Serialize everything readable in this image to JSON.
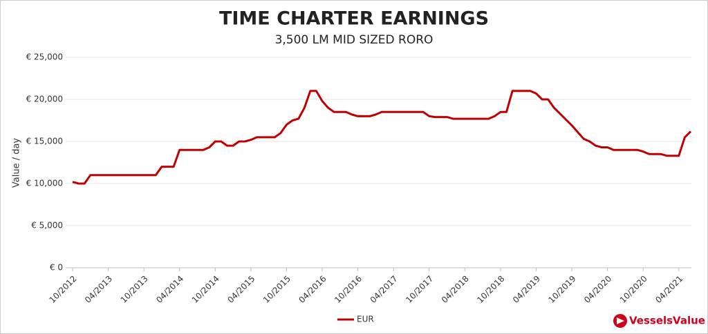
{
  "chart_data": {
    "type": "line",
    "title": "TIME CHARTER EARNINGS",
    "subtitle": "3,500 LM MID SIZED RORO",
    "y_label": "Value / day",
    "logo": "VesselsValue",
    "categories": [
      "10/2012",
      null,
      null,
      null,
      null,
      null,
      "04/2013",
      null,
      null,
      null,
      null,
      null,
      "10/2013",
      null,
      null,
      null,
      null,
      null,
      "04/2014",
      null,
      null,
      null,
      null,
      null,
      "10/2014",
      null,
      null,
      null,
      null,
      null,
      "04/2015",
      null,
      null,
      null,
      null,
      null,
      "10/2015",
      null,
      null,
      null,
      null,
      null,
      "04/2016",
      null,
      null,
      null,
      null,
      null,
      "10/2016",
      null,
      null,
      null,
      null,
      null,
      "04/2017",
      null,
      null,
      null,
      null,
      null,
      "10/2017",
      null,
      null,
      null,
      null,
      null,
      "04/2018",
      null,
      null,
      null,
      null,
      null,
      "10/2018",
      null,
      null,
      null,
      null,
      null,
      "04/2019",
      null,
      null,
      null,
      null,
      null,
      "10/2019",
      null,
      null,
      null,
      null,
      null,
      "04/2020",
      null,
      null,
      null,
      null,
      null,
      "10/2020",
      null,
      null,
      null,
      null,
      null,
      "04/2021",
      null,
      null
    ],
    "series": [
      {
        "name": "EUR",
        "color": "#c00000",
        "values": [
          10200,
          10000,
          10000,
          11000,
          11000,
          11000,
          11000,
          11000,
          11000,
          11000,
          11000,
          11000,
          11000,
          11000,
          11000,
          12000,
          12000,
          12000,
          14000,
          14000,
          14000,
          14000,
          14000,
          14300,
          15000,
          15000,
          14500,
          14500,
          15000,
          15000,
          15200,
          15500,
          15500,
          15500,
          15500,
          16000,
          17000,
          17500,
          17700,
          19000,
          21000,
          21000,
          19800,
          19000,
          18500,
          18500,
          18500,
          18200,
          18000,
          18000,
          18000,
          18200,
          18500,
          18500,
          18500,
          18500,
          18500,
          18500,
          18500,
          18500,
          18000,
          17900,
          17900,
          17900,
          17700,
          17700,
          17700,
          17700,
          17700,
          17700,
          17700,
          18000,
          18500,
          18500,
          21000,
          21000,
          21000,
          21000,
          20700,
          20000,
          20000,
          19000,
          18300,
          17600,
          16900,
          16100,
          15300,
          15000,
          14500,
          14300,
          14300,
          14000,
          14000,
          14000,
          14000,
          14000,
          13800,
          13500,
          13500,
          13500,
          13300,
          13300,
          13300,
          15500,
          16200
        ]
      }
    ],
    "ylim": [
      0,
      25000
    ],
    "yticks": [
      {
        "value": 0,
        "label": "€ 0"
      },
      {
        "value": 5000,
        "label": "€ 5,000"
      },
      {
        "value": 10000,
        "label": "€ 10,000"
      },
      {
        "value": 15000,
        "label": "€ 15,000"
      },
      {
        "value": 20000,
        "label": "€ 20,000"
      },
      {
        "value": 25000,
        "label": "€ 25,000"
      }
    ],
    "grid": true,
    "legend": "bottom"
  }
}
